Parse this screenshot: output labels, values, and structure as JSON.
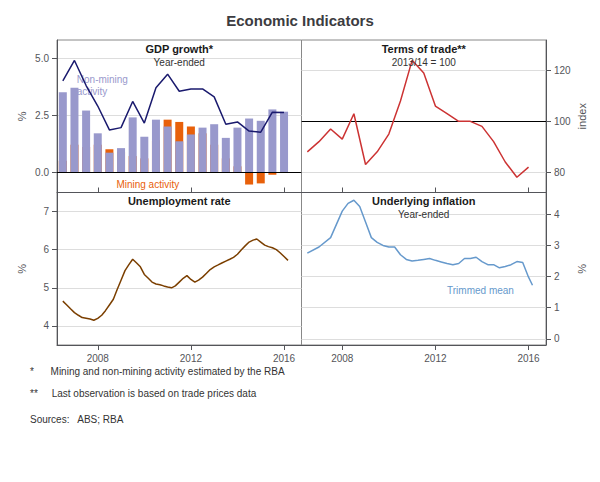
{
  "title": "Economic Indicators",
  "annotations": [
    "*      Mining and non-mining activity estimated by the RBA",
    "**     Last observation is based on trade prices data",
    "Sources:   ABS; RBA"
  ],
  "chart_data": [
    {
      "type": "bar",
      "title": "GDP growth*",
      "subtitle": "Year-ended",
      "y_label": "%",
      "x": [
        2006.5,
        2007.0,
        2007.5,
        2008.0,
        2008.5,
        2009.0,
        2009.5,
        2010.0,
        2010.5,
        2011.0,
        2011.5,
        2012.0,
        2012.5,
        2013.0,
        2013.5,
        2014.0,
        2014.5,
        2015.0,
        2015.5,
        2016.0
      ],
      "series": [
        {
          "type": "bar",
          "color": "#E8600A",
          "values": [
            0.5,
            1.2,
            1.1,
            1.2,
            1.0,
            0.9,
            0.7,
            0.6,
            1.4,
            2.3,
            2.2,
            2.0,
            1.7,
            1.2,
            0.6,
            0.25,
            -0.55,
            -0.5,
            -0.12,
            -0.04
          ]
        },
        {
          "type": "bar",
          "color": "#9999CC",
          "values": [
            3.5,
            3.7,
            2.7,
            1.7,
            0.85,
            1.05,
            2.4,
            1.55,
            2.3,
            2.0,
            1.35,
            1.65,
            1.95,
            2.1,
            1.5,
            1.95,
            2.35,
            2.25,
            2.75,
            2.65
          ]
        },
        {
          "type": "line",
          "color": "#1A1A6E",
          "values": [
            4.0,
            4.9,
            3.8,
            2.9,
            1.85,
            1.95,
            3.1,
            2.15,
            3.7,
            4.3,
            3.55,
            3.65,
            3.65,
            3.3,
            2.1,
            2.2,
            1.8,
            1.75,
            2.63,
            2.61
          ]
        }
      ],
      "stacked": true,
      "xlim": [
        2006.25,
        2016.75
      ],
      "xticks": [
        2008,
        2012,
        2016
      ],
      "ylim": [
        -0.9,
        5.8
      ],
      "yticks": [
        {
          "value": 0,
          "label": "0.0"
        },
        2.5,
        {
          "value": 5,
          "label": "5.0"
        }
      ],
      "grid": true,
      "tick_labels": "y",
      "reference_line": 0,
      "annotations": [
        {
          "text": "Non-mining\nactivity",
          "x": 2007.1,
          "y": 3.8,
          "color": "#9999CC"
        },
        {
          "text": "Mining activity",
          "x": 2008.8,
          "y": -0.55,
          "color": "#E8600A"
        }
      ]
    },
    {
      "type": "line",
      "title": "Terms of trade**",
      "subtitle": "2013/14 = 100",
      "y_label": "index",
      "x": [
        2006.5,
        2007.0,
        2007.5,
        2008.0,
        2008.5,
        2009.0,
        2009.5,
        2010.0,
        2010.5,
        2011.0,
        2011.5,
        2012.0,
        2012.5,
        2013.0,
        2013.5,
        2014.0,
        2014.5,
        2015.0,
        2015.5,
        2016.0
      ],
      "series": [
        {
          "color": "#CC3333",
          "values": [
            88,
            92,
            97,
            93,
            103,
            83,
            88,
            95,
            108,
            124,
            119,
            106,
            103,
            100,
            100,
            98,
            92,
            84,
            78,
            82
          ]
        }
      ],
      "xlim": [
        2006.25,
        2016.75
      ],
      "xticks": [
        2008,
        2012,
        2016
      ],
      "ylim": [
        72,
        132
      ],
      "yticks": [
        80,
        100,
        120
      ],
      "grid": true,
      "tick_labels": "y",
      "reference_line": 100
    },
    {
      "type": "line",
      "title": "Unemployment rate",
      "y_label": "%",
      "x": [
        2006.5,
        2006.67,
        2006.83,
        2007.0,
        2007.17,
        2007.33,
        2007.5,
        2007.67,
        2007.83,
        2008.0,
        2008.17,
        2008.33,
        2008.5,
        2008.67,
        2008.83,
        2009.0,
        2009.17,
        2009.33,
        2009.5,
        2009.67,
        2009.83,
        2010.0,
        2010.17,
        2010.33,
        2010.5,
        2010.67,
        2010.83,
        2011.0,
        2011.17,
        2011.33,
        2011.5,
        2011.67,
        2011.83,
        2012.0,
        2012.17,
        2012.33,
        2012.5,
        2012.67,
        2012.83,
        2013.0,
        2013.17,
        2013.33,
        2013.5,
        2013.67,
        2013.83,
        2014.0,
        2014.17,
        2014.33,
        2014.5,
        2014.67,
        2014.83,
        2015.0,
        2015.17,
        2015.33,
        2015.5,
        2015.67,
        2015.83,
        2016.0,
        2016.17
      ],
      "series": [
        {
          "color": "#7B3F00",
          "values": [
            4.65,
            4.55,
            4.45,
            4.35,
            4.28,
            4.22,
            4.2,
            4.18,
            4.15,
            4.2,
            4.28,
            4.4,
            4.55,
            4.7,
            4.95,
            5.2,
            5.45,
            5.6,
            5.75,
            5.65,
            5.55,
            5.35,
            5.25,
            5.15,
            5.1,
            5.08,
            5.05,
            5.02,
            5.0,
            5.05,
            5.15,
            5.25,
            5.32,
            5.22,
            5.15,
            5.2,
            5.28,
            5.38,
            5.48,
            5.55,
            5.6,
            5.65,
            5.7,
            5.75,
            5.8,
            5.88,
            6.0,
            6.1,
            6.2,
            6.25,
            6.28,
            6.2,
            6.12,
            6.08,
            6.05,
            6.0,
            5.92,
            5.82,
            5.72
          ]
        }
      ],
      "xlim": [
        2006.25,
        2016.75
      ],
      "xticks": [
        2008,
        2012,
        2016
      ],
      "ylim": [
        3.5,
        7.5
      ],
      "yticks": [
        4,
        5,
        6,
        7
      ],
      "grid": true
    },
    {
      "type": "line",
      "title": "Underlying inflation",
      "subtitle": "Year-ended",
      "y_label": "%",
      "x": [
        2006.5,
        2007.0,
        2007.5,
        2008.0,
        2008.25,
        2008.5,
        2008.75,
        2009.0,
        2009.25,
        2009.5,
        2009.75,
        2010.0,
        2010.25,
        2010.5,
        2010.75,
        2011.0,
        2011.25,
        2011.5,
        2011.75,
        2012.0,
        2012.25,
        2012.5,
        2012.75,
        2013.0,
        2013.25,
        2013.5,
        2013.75,
        2014.0,
        2014.25,
        2014.5,
        2014.75,
        2015.0,
        2015.25,
        2015.5,
        2015.75,
        2016.0,
        2016.17
      ],
      "series": [
        {
          "color": "#6699CC",
          "values": [
            2.75,
            2.95,
            3.25,
            4.1,
            4.35,
            4.45,
            4.25,
            3.75,
            3.25,
            3.1,
            3.0,
            2.95,
            2.95,
            2.7,
            2.55,
            2.5,
            2.52,
            2.55,
            2.58,
            2.52,
            2.47,
            2.42,
            2.38,
            2.42,
            2.58,
            2.58,
            2.62,
            2.48,
            2.38,
            2.38,
            2.28,
            2.32,
            2.38,
            2.48,
            2.45,
            1.98,
            1.72
          ]
        }
      ],
      "xlim": [
        2006.25,
        2016.75
      ],
      "xticks": [
        2008,
        2012,
        2016
      ],
      "ylim": [
        -0.2,
        4.7
      ],
      "yticks": [
        0,
        1,
        2,
        3,
        4
      ],
      "grid": true,
      "annotations": [
        {
          "text": "Trimmed mean",
          "x": 2012.5,
          "y": 1.55,
          "color": "#6699CC"
        }
      ]
    }
  ]
}
